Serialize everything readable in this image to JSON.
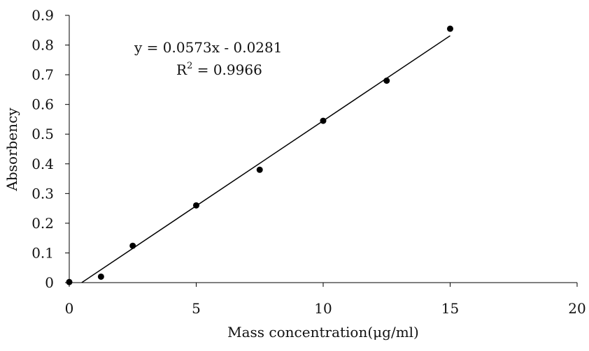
{
  "chart_data": {
    "type": "scatter",
    "xlabel": "Mass concentration(μg/ml)",
    "ylabel": "Absorbency",
    "xlim": [
      0,
      20
    ],
    "ylim": [
      0,
      0.9
    ],
    "x_ticks": [
      "0",
      "5",
      "10",
      "15",
      "20"
    ],
    "y_ticks": [
      "0",
      "0.1",
      "0.2",
      "0.3",
      "0.4",
      "0.5",
      "0.6",
      "0.7",
      "0.8",
      "0.9"
    ],
    "grid": false,
    "legend": "none",
    "series": [
      {
        "x": [
          0,
          1.25,
          2.5,
          5,
          7.5,
          10,
          12.5,
          15
        ],
        "y": [
          0.002,
          0.02,
          0.124,
          0.26,
          0.38,
          0.545,
          0.68,
          0.855
        ]
      }
    ],
    "trendline": {
      "slope": 0.0573,
      "intercept": -0.0281,
      "x_range": [
        0.49,
        15
      ]
    },
    "annotations": {
      "equation": "y = 0.0573x - 0.0281",
      "r2_prefix": "R",
      "r2_superscript": "2",
      "r2_value": " = 0.9966"
    }
  }
}
